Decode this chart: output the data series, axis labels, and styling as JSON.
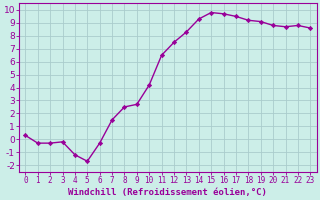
{
  "x": [
    0,
    1,
    2,
    3,
    4,
    5,
    6,
    7,
    8,
    9,
    10,
    11,
    12,
    13,
    14,
    15,
    16,
    17,
    18,
    19,
    20,
    21,
    22,
    23
  ],
  "y": [
    0.3,
    -0.3,
    -0.3,
    -0.2,
    -1.2,
    -1.7,
    -0.3,
    1.5,
    2.5,
    2.7,
    4.2,
    6.5,
    7.5,
    8.3,
    9.3,
    9.8,
    9.7,
    9.5,
    9.2,
    9.1,
    8.8,
    8.7,
    8.8,
    8.6
  ],
  "line_color": "#990099",
  "marker": "D",
  "marker_size": 2.2,
  "bg_color": "#cceee8",
  "grid_color": "#aacccc",
  "xlabel": "Windchill (Refroidissement éolien,°C)",
  "ylabel_ticks": [
    -2,
    -1,
    0,
    1,
    2,
    3,
    4,
    5,
    6,
    7,
    8,
    9,
    10
  ],
  "xlim": [
    -0.5,
    23.5
  ],
  "ylim": [
    -2.5,
    10.5
  ],
  "xlabel_fontsize": 6.5,
  "xtick_fontsize": 5.5,
  "ytick_fontsize": 6.5,
  "line_width": 1.0
}
